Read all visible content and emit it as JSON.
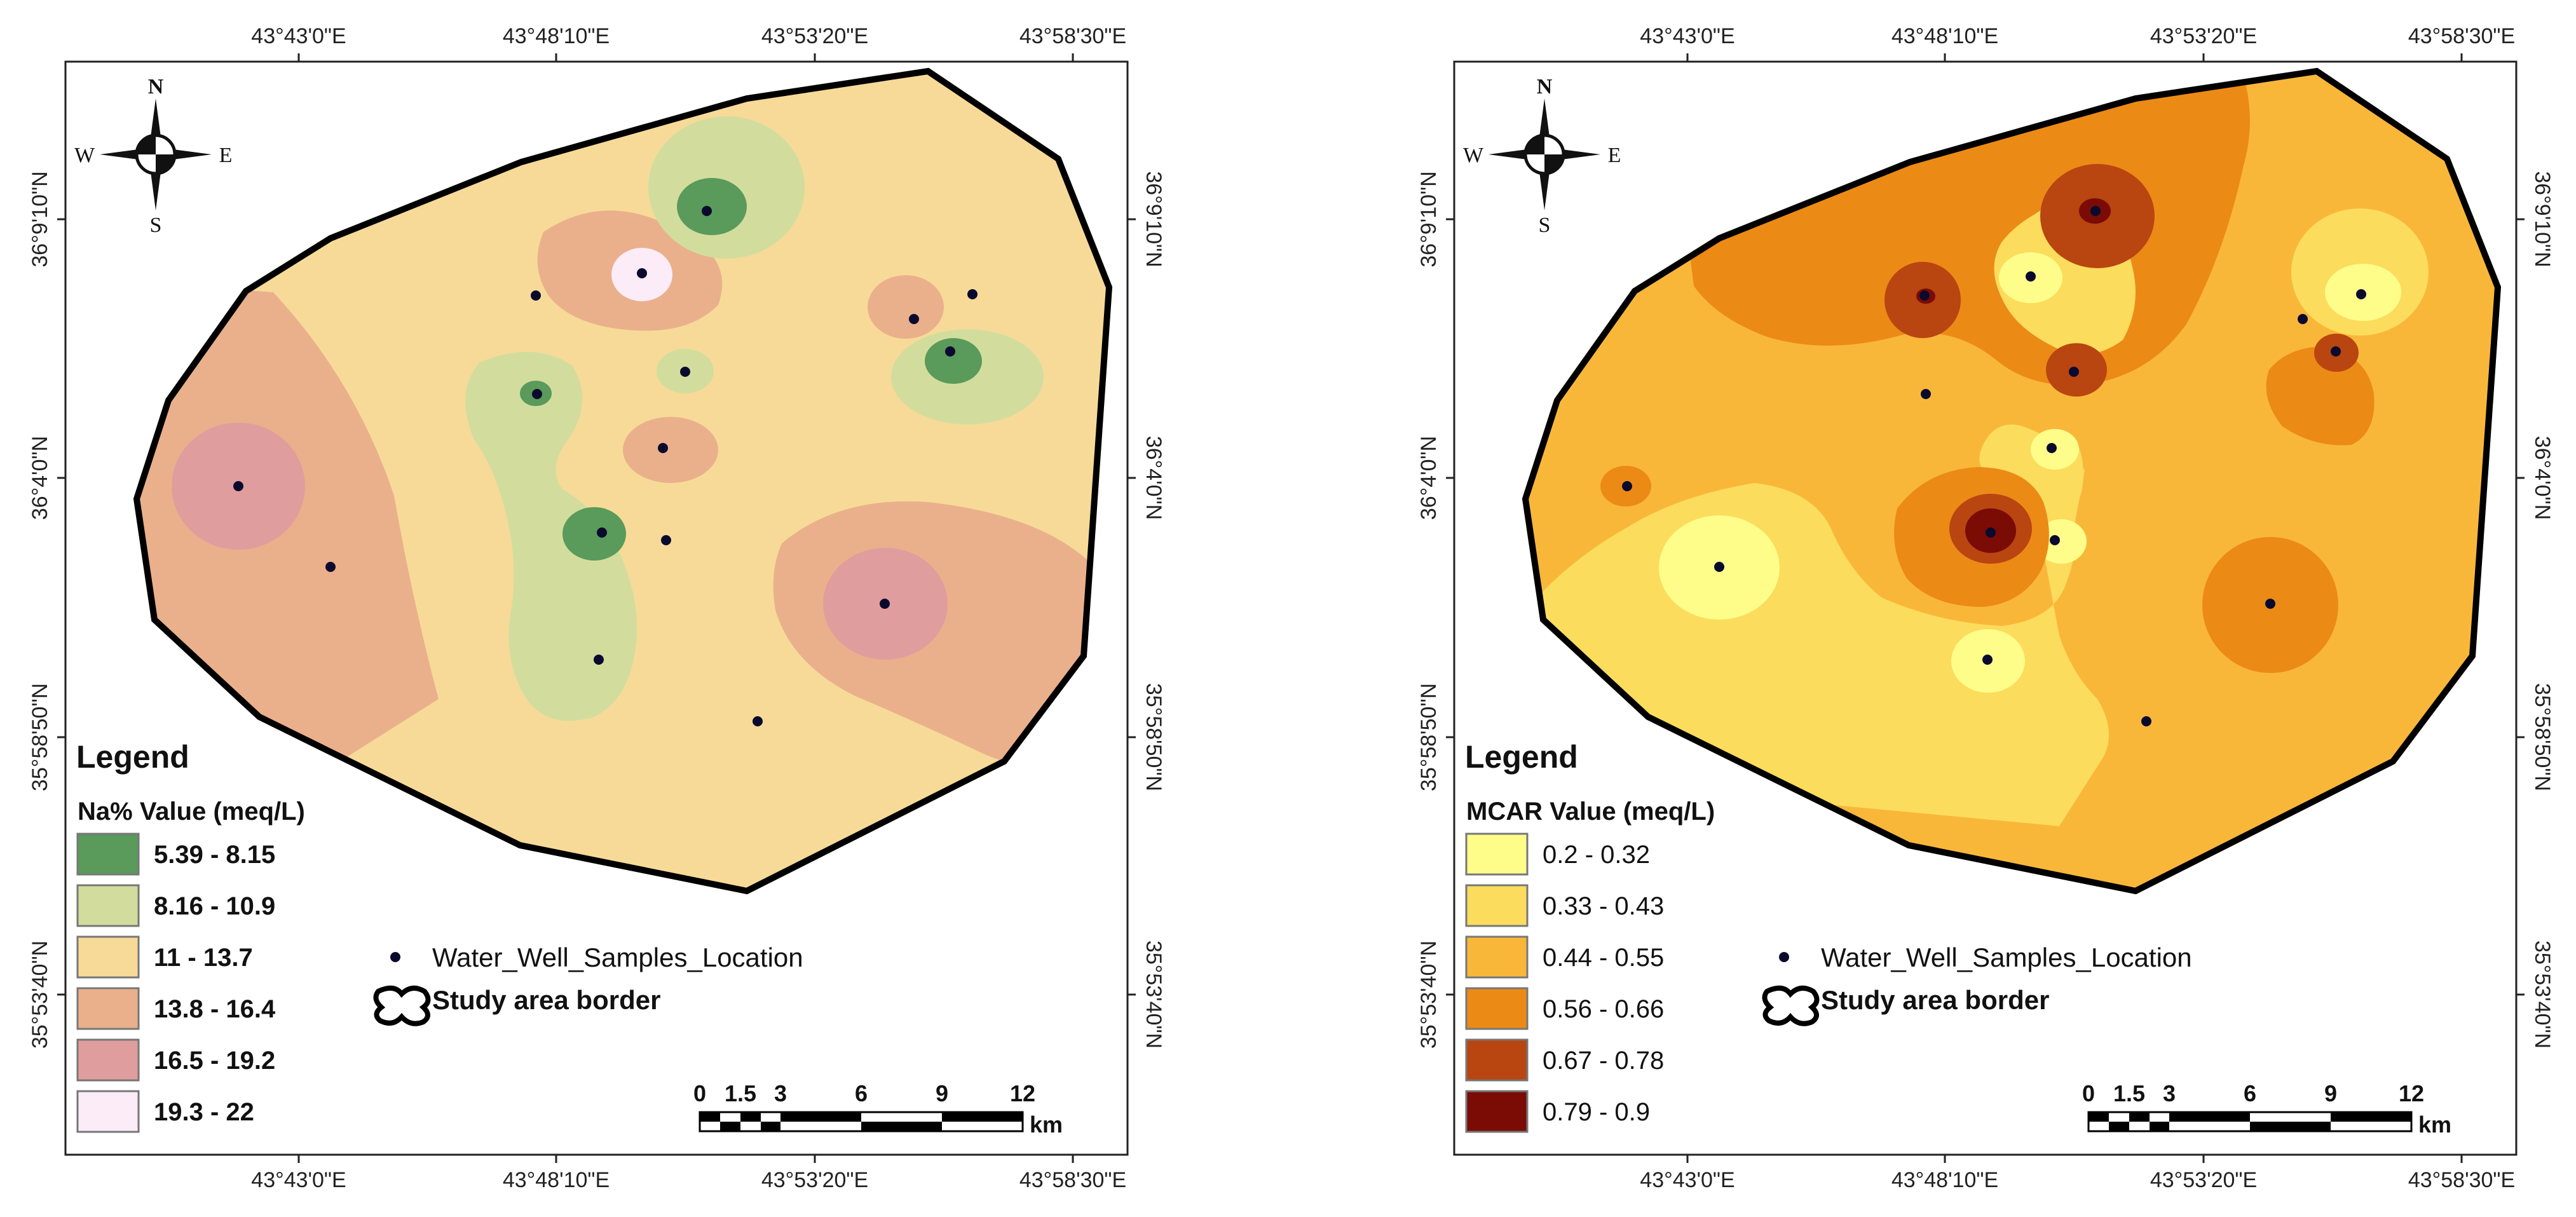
{
  "maps": [
    {
      "id": "na",
      "legend_title": "Legend",
      "legend_subtitle": "Na% Value (meq/L)",
      "classes": [
        {
          "label": "5.39 - 8.15",
          "color": "#5a9a5a"
        },
        {
          "label": "8.16 - 10.9",
          "color": "#d2dd9d"
        },
        {
          "label": "11 - 13.7",
          "color": "#f7da98"
        },
        {
          "label": "13.8 - 16.4",
          "color": "#eab08b"
        },
        {
          "label": "16.5 - 19.2",
          "color": "#e09d9d"
        },
        {
          "label": "19.3 - 22",
          "color": "#fcecf7"
        }
      ]
    },
    {
      "id": "mcar",
      "legend_title": "Legend",
      "legend_subtitle": "MCAR Value (meq/L)",
      "classes": [
        {
          "label": "0.2 - 0.32",
          "color": "#fefd8a"
        },
        {
          "label": "0.33 - 0.43",
          "color": "#fcdc5c"
        },
        {
          "label": "0.44 - 0.55",
          "color": "#f9b73a"
        },
        {
          "label": "0.56 - 0.66",
          "color": "#ec8a16"
        },
        {
          "label": "0.67 - 0.78",
          "color": "#b94510"
        },
        {
          "label": "0.79 - 0.9",
          "color": "#7a0b05"
        }
      ]
    }
  ],
  "common": {
    "wells_label": "Water_Well_Samples_Location",
    "border_label": "Study area border",
    "lon_ticks": [
      "43°43'0\"E",
      "43°48'10\"E",
      "43°53'20\"E",
      "43°58'30\"E"
    ],
    "lat_ticks": [
      "36°9'10\"N",
      "36°4'0\"N",
      "35°58'50\"N",
      "35°53'40\"N"
    ],
    "scale_labels": [
      "0",
      "1.5",
      "3",
      "6",
      "9",
      "12"
    ],
    "scale_unit": "km",
    "compass": {
      "n": "N",
      "s": "S",
      "e": "E",
      "w": "W"
    }
  }
}
